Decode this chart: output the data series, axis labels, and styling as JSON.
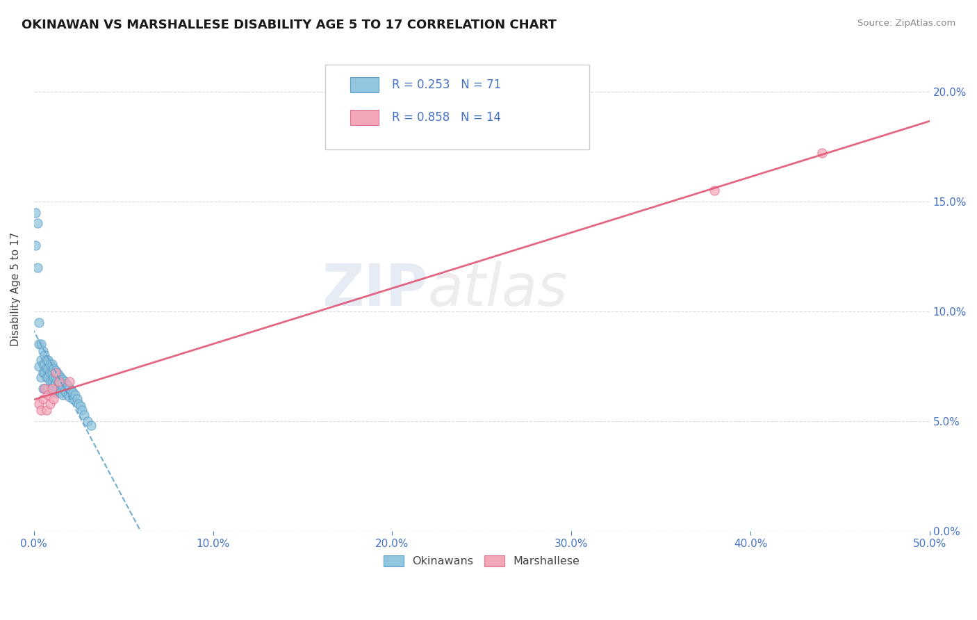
{
  "title": "OKINAWAN VS MARSHALLESE DISABILITY AGE 5 TO 17 CORRELATION CHART",
  "source": "Source: ZipAtlas.com",
  "ylabel": "Disability Age 5 to 17",
  "xlim": [
    0.0,
    0.5
  ],
  "ylim": [
    0.0,
    0.22
  ],
  "xticks": [
    0.0,
    0.1,
    0.2,
    0.3,
    0.4,
    0.5
  ],
  "xtick_labels": [
    "0.0%",
    "10.0%",
    "20.0%",
    "30.0%",
    "40.0%",
    "50.0%"
  ],
  "yticks": [
    0.0,
    0.05,
    0.1,
    0.15,
    0.2
  ],
  "ytick_labels": [
    "0.0%",
    "5.0%",
    "10.0%",
    "15.0%",
    "20.0%"
  ],
  "okinawan_color": "#92c5de",
  "okinawan_edge_color": "#5b9ec9",
  "marshallese_color": "#f4a7b9",
  "marshallese_edge_color": "#e07090",
  "okinawan_R": 0.253,
  "okinawan_N": 71,
  "marshallese_R": 0.858,
  "marshallese_N": 14,
  "legend_label_okinawan": "Okinawans",
  "legend_label_marshallese": "Marshallese",
  "watermark_zip": "ZIP",
  "watermark_atlas": "atlas",
  "background_color": "#ffffff",
  "grid_color": "#d8d8d8",
  "title_fontsize": 13,
  "tick_color": "#4472c4",
  "trendline_blue_color": "#5b9ec9",
  "trendline_pink_color": "#e05575",
  "okinawan_x": [
    0.001,
    0.001,
    0.002,
    0.002,
    0.003,
    0.003,
    0.003,
    0.004,
    0.004,
    0.004,
    0.005,
    0.005,
    0.005,
    0.005,
    0.006,
    0.006,
    0.006,
    0.006,
    0.007,
    0.007,
    0.007,
    0.007,
    0.008,
    0.008,
    0.008,
    0.008,
    0.009,
    0.009,
    0.009,
    0.01,
    0.01,
    0.01,
    0.01,
    0.011,
    0.011,
    0.011,
    0.012,
    0.012,
    0.012,
    0.012,
    0.013,
    0.013,
    0.013,
    0.014,
    0.014,
    0.014,
    0.015,
    0.015,
    0.015,
    0.016,
    0.016,
    0.016,
    0.017,
    0.017,
    0.018,
    0.018,
    0.019,
    0.019,
    0.02,
    0.02,
    0.021,
    0.022,
    0.022,
    0.023,
    0.024,
    0.025,
    0.026,
    0.027,
    0.028,
    0.03,
    0.032
  ],
  "okinawan_y": [
    0.145,
    0.13,
    0.14,
    0.12,
    0.095,
    0.085,
    0.075,
    0.085,
    0.078,
    0.07,
    0.082,
    0.076,
    0.072,
    0.065,
    0.08,
    0.076,
    0.072,
    0.065,
    0.078,
    0.074,
    0.07,
    0.065,
    0.078,
    0.074,
    0.07,
    0.065,
    0.076,
    0.072,
    0.068,
    0.076,
    0.072,
    0.068,
    0.064,
    0.074,
    0.07,
    0.066,
    0.073,
    0.07,
    0.067,
    0.063,
    0.072,
    0.069,
    0.065,
    0.071,
    0.068,
    0.064,
    0.07,
    0.067,
    0.063,
    0.069,
    0.066,
    0.062,
    0.068,
    0.064,
    0.067,
    0.063,
    0.066,
    0.062,
    0.065,
    0.061,
    0.064,
    0.063,
    0.06,
    0.062,
    0.06,
    0.058,
    0.057,
    0.055,
    0.053,
    0.05,
    0.048
  ],
  "marshallese_x": [
    0.003,
    0.004,
    0.005,
    0.006,
    0.007,
    0.008,
    0.009,
    0.01,
    0.011,
    0.012,
    0.014,
    0.02,
    0.38,
    0.44
  ],
  "marshallese_y": [
    0.058,
    0.055,
    0.06,
    0.065,
    0.055,
    0.062,
    0.058,
    0.065,
    0.06,
    0.072,
    0.068,
    0.068,
    0.155,
    0.172
  ]
}
